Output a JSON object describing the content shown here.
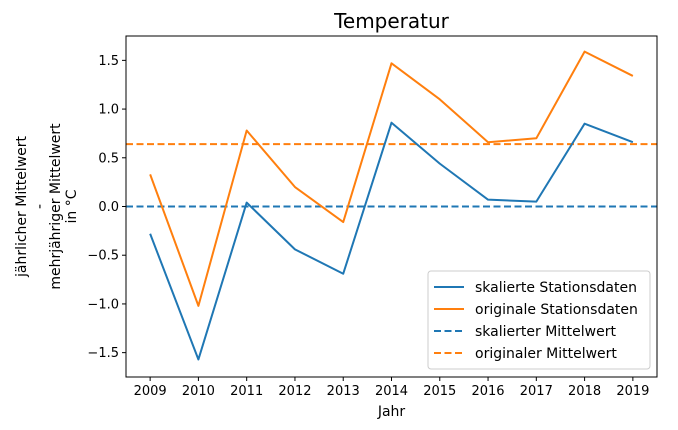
{
  "chart_data": {
    "type": "line",
    "title": "Temperatur",
    "xlabel": "Jahr",
    "ylabel_lines": [
      "jährlicher Mittelwert",
      "-",
      "mehrjähriger Mittelwert",
      "in °C"
    ],
    "x": [
      2009,
      2010,
      2011,
      2012,
      2013,
      2014,
      2015,
      2016,
      2017,
      2018,
      2019
    ],
    "xlim": [
      2008.5,
      2019.5
    ],
    "ylim": [
      -1.75,
      1.75
    ],
    "yticks": [
      "-1.5",
      "-1.0",
      "-0.5",
      "0.0",
      "0.5",
      "1.0",
      "1.5"
    ],
    "grid": false,
    "legend_position": "lower-right",
    "series": [
      {
        "name": "skalierte Stationsdaten",
        "style": "solid",
        "color": "#1f77b4",
        "values": [
          -0.28,
          -1.57,
          0.04,
          -0.44,
          -0.69,
          0.86,
          0.44,
          0.07,
          0.05,
          0.85,
          0.66
        ]
      },
      {
        "name": "originale Stationsdaten",
        "style": "solid",
        "color": "#ff7f0e",
        "values": [
          0.33,
          -1.02,
          0.78,
          0.2,
          -0.16,
          1.47,
          1.1,
          0.66,
          0.7,
          1.59,
          1.34
        ]
      }
    ],
    "hlines": [
      {
        "name": "skalierter Mittelwert",
        "style": "dashed",
        "color": "#1f77b4",
        "value": 0.0
      },
      {
        "name": "originaler Mittelwert",
        "style": "dashed",
        "color": "#ff7f0e",
        "value": 0.64
      }
    ]
  }
}
